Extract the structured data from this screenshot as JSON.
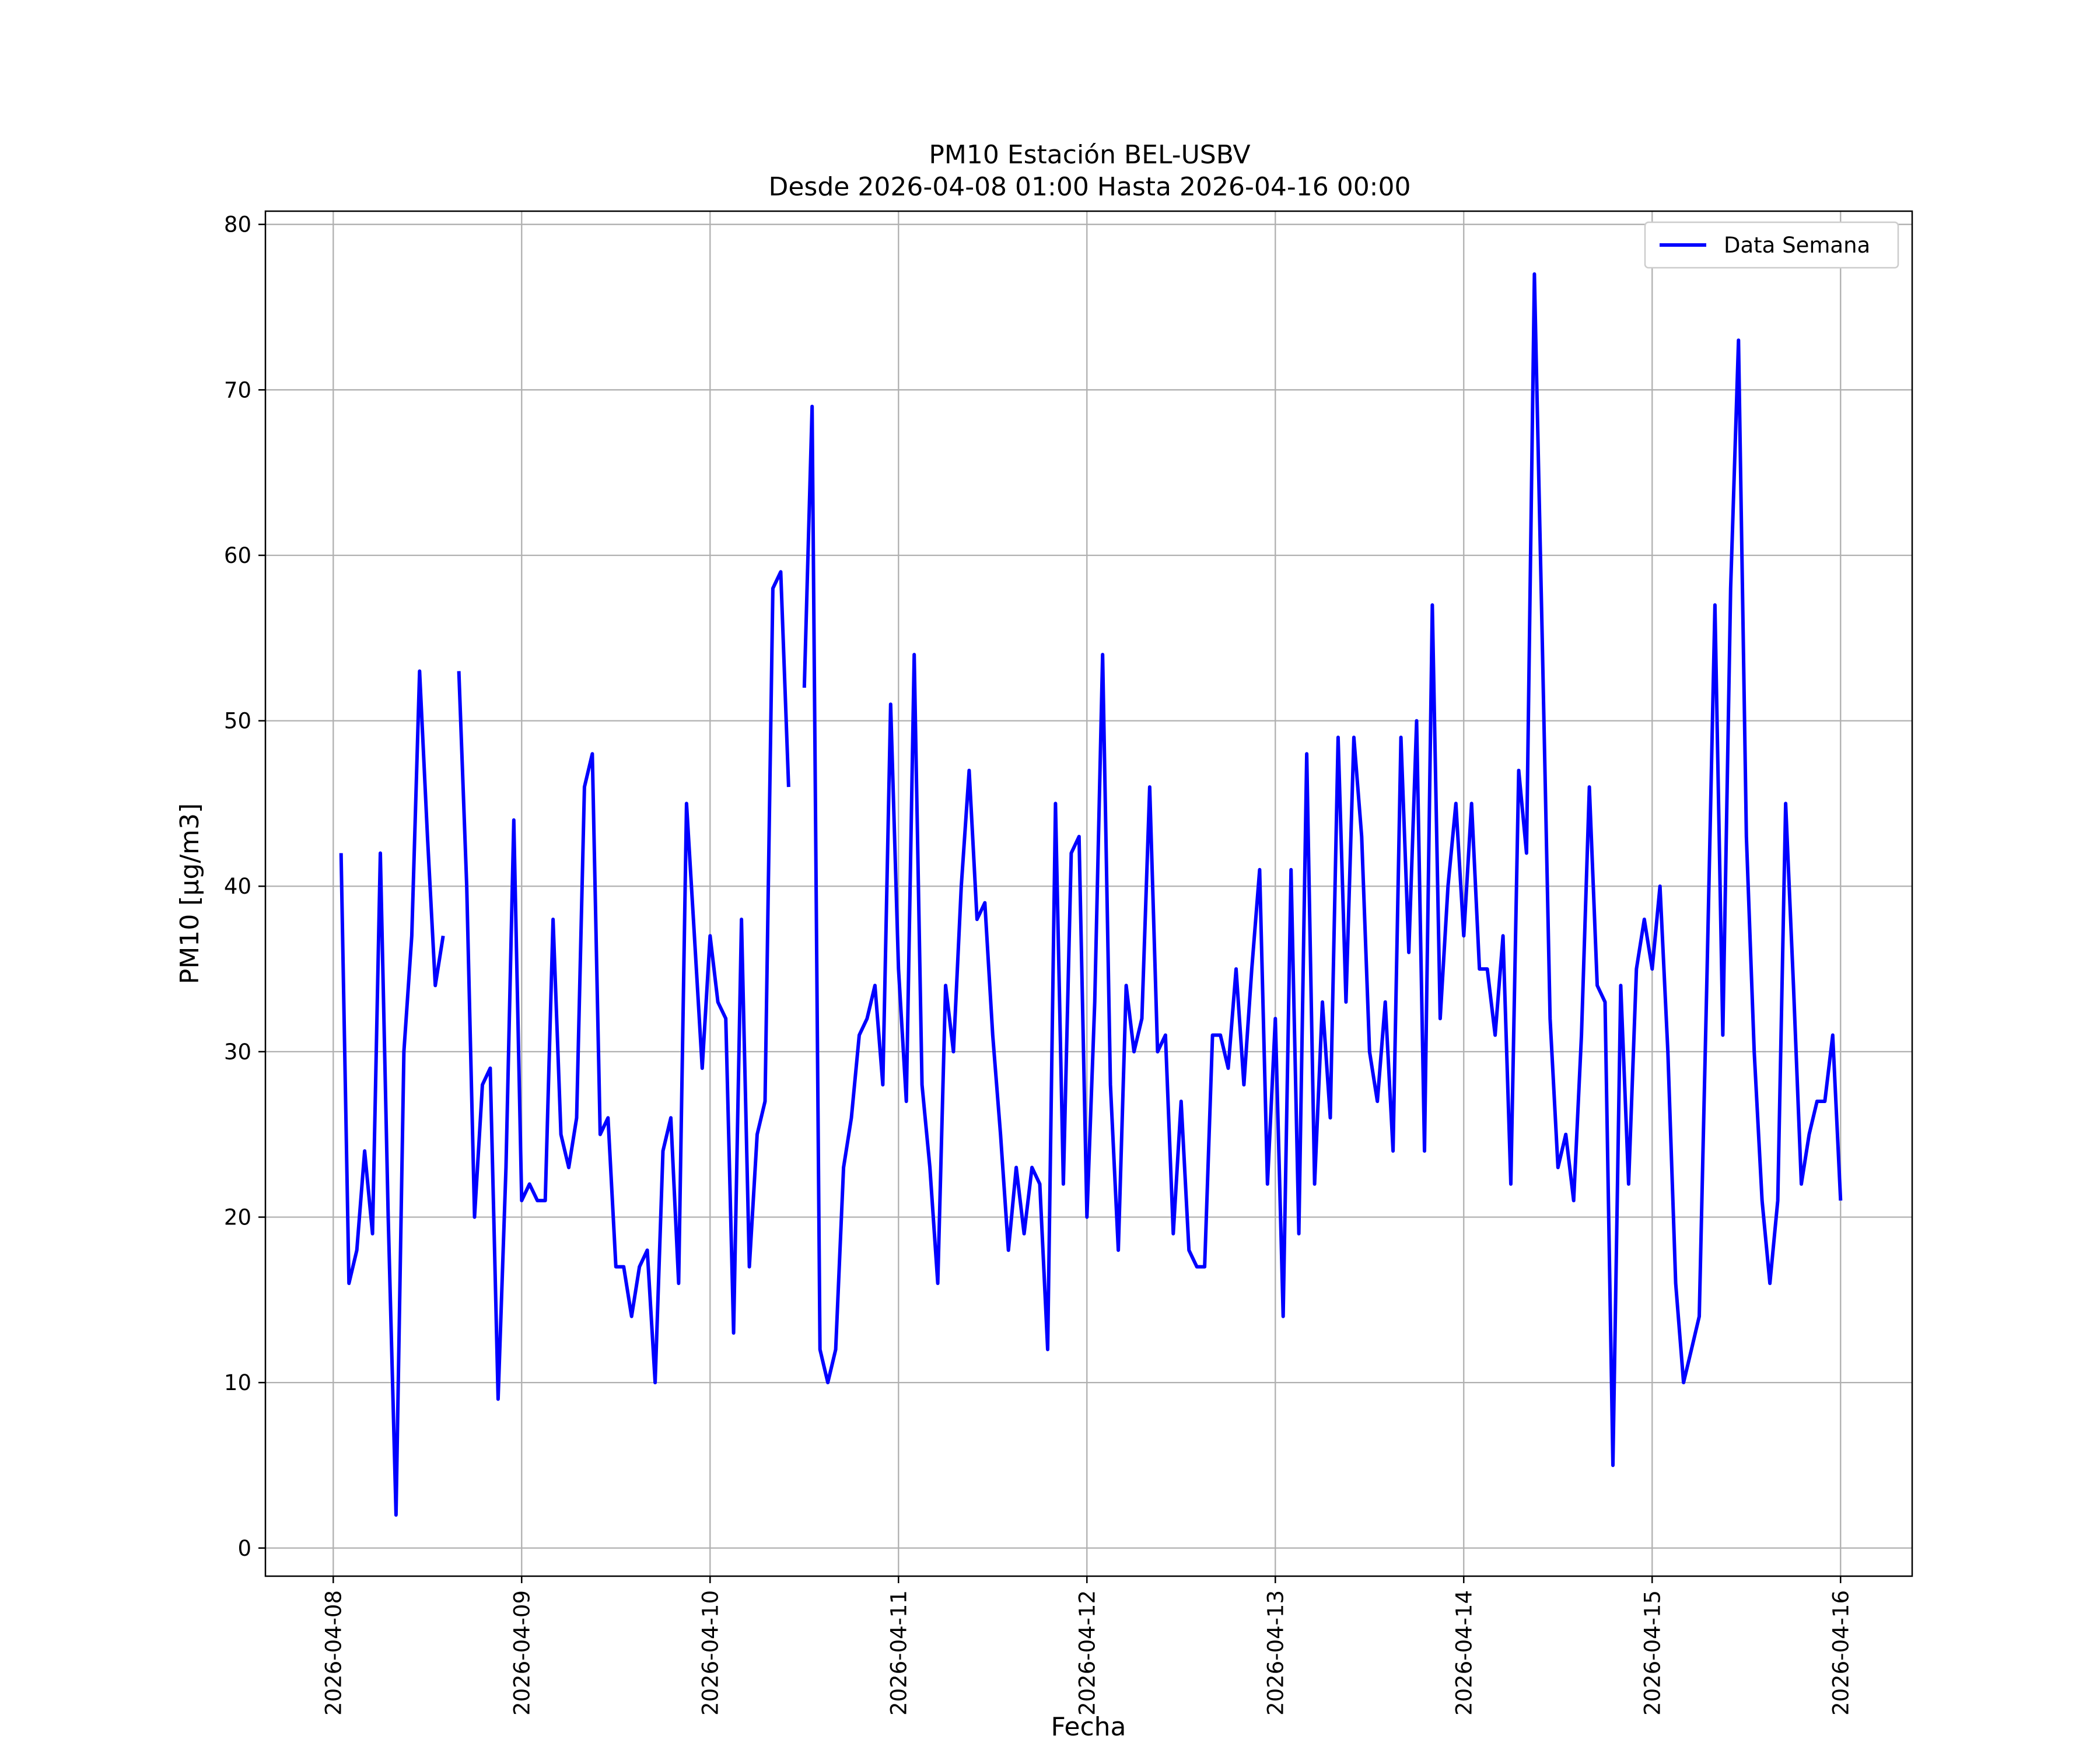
{
  "chart_data": {
    "type": "line",
    "title": "PM10 Estación BEL-USBV",
    "subtitle": "Desde 2026-04-08 01:00 Hasta 2026-04-16 00:00",
    "xlabel": "Fecha",
    "ylabel": "PM10 [μg/m3]",
    "x_start": "2026-04-08 01:00",
    "x_step_hours": 1,
    "xlim_days_from_2026-04-08": [
      -0.36,
      8.38
    ],
    "ylim": [
      -1.7,
      80.8
    ],
    "grid": true,
    "legend_position": "top-right",
    "x_ticks": [
      "2026-04-08",
      "2026-04-09",
      "2026-04-10",
      "2026-04-11",
      "2026-04-12",
      "2026-04-13",
      "2026-04-14",
      "2026-04-15",
      "2026-04-16"
    ],
    "y_ticks": [
      "0",
      "10",
      "20",
      "30",
      "40",
      "50",
      "60",
      "70",
      "80"
    ],
    "series": [
      {
        "name": "Data Semana",
        "color": "#0000ff",
        "values": [
          42,
          16,
          18,
          24,
          19,
          42,
          20,
          2,
          30,
          37,
          53,
          43,
          34,
          37,
          null,
          53,
          40,
          20,
          28,
          29,
          9,
          23,
          44,
          21,
          22,
          21,
          21,
          38,
          25,
          23,
          26,
          46,
          48,
          25,
          26,
          17,
          17,
          14,
          17,
          18,
          10,
          24,
          26,
          16,
          45,
          37,
          29,
          37,
          33,
          32,
          13,
          38,
          17,
          25,
          27,
          58,
          59,
          46,
          null,
          52,
          69,
          12,
          10,
          12,
          23,
          26,
          31,
          32,
          34,
          28,
          51,
          35,
          27,
          54,
          28,
          23,
          16,
          34,
          30,
          40,
          47,
          38,
          39,
          31,
          25,
          18,
          23,
          19,
          23,
          22,
          12,
          45,
          22,
          42,
          43,
          20,
          33,
          54,
          28,
          18,
          34,
          30,
          32,
          46,
          30,
          31,
          19,
          27,
          18,
          17,
          17,
          31,
          31,
          29,
          35,
          28,
          35,
          41,
          22,
          32,
          14,
          41,
          19,
          48,
          22,
          33,
          26,
          49,
          33,
          49,
          43,
          30,
          27,
          33,
          24,
          49,
          36,
          50,
          24,
          57,
          32,
          40,
          45,
          37,
          45,
          35,
          35,
          31,
          37,
          22,
          47,
          42,
          77,
          55,
          32,
          23,
          25,
          21,
          31,
          46,
          34,
          33,
          5,
          34,
          22,
          35,
          38,
          35,
          40,
          30,
          16,
          10,
          12,
          14,
          35,
          57,
          31,
          58,
          73,
          43,
          30,
          21,
          16,
          21,
          45,
          34,
          22,
          25,
          27,
          27,
          31,
          21
        ]
      }
    ]
  }
}
